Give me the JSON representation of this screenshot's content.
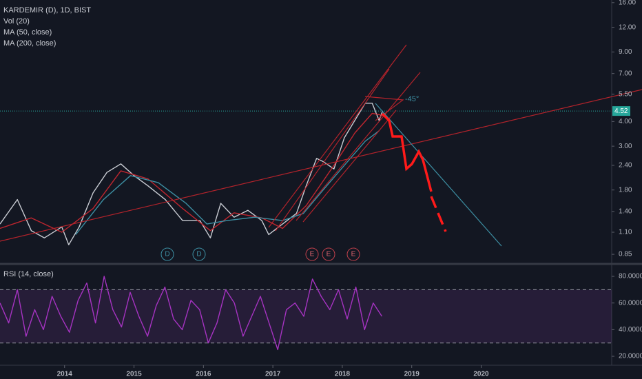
{
  "chart_data": [
    {
      "type": "line",
      "title": "KARDEMIR (D), 1D, BIST",
      "indicator_labels": [
        "Vol (20)"
      ],
      "log": true,
      "xlim": [
        2013.07,
        2021.88
      ],
      "ylim": [
        0.76,
        16.5
      ],
      "xticks": [
        2014,
        2015,
        2016,
        2017,
        2018,
        2019,
        2020
      ],
      "yticks": [
        {
          "value": 16,
          "label": "16.00"
        },
        {
          "value": 12,
          "label": "12.00"
        },
        {
          "value": 9,
          "label": "9.00"
        },
        {
          "value": 7,
          "label": "7.00"
        },
        {
          "value": 5.5,
          "label": "5.50"
        },
        {
          "value": 4,
          "label": "4.00"
        },
        {
          "value": 3,
          "label": "3.00"
        },
        {
          "value": 2.4,
          "label": "2.40"
        },
        {
          "value": 1.8,
          "label": "1.80"
        },
        {
          "value": 1.4,
          "label": "1.40"
        },
        {
          "value": 1.1,
          "label": "1.10"
        },
        {
          "value": 0.85,
          "label": "0.85"
        }
      ],
      "last_price": 4.52,
      "last_price_color": "#26a69a",
      "annotations": [
        "-45°"
      ],
      "events": [
        "D",
        "D",
        "E",
        "E",
        "E"
      ],
      "series": [
        {
          "color": "#c9ccd3",
          "x": [
            2013.07,
            2013.32,
            2013.52,
            2013.71,
            2013.96,
            2014.06,
            2014.21,
            2014.41,
            2014.61,
            2014.81,
            2015.0,
            2015.2,
            2015.45,
            2015.7,
            2015.95,
            2016.1,
            2016.25,
            2016.44,
            2016.64,
            2016.84,
            2016.94,
            2017.14,
            2017.34,
            2017.48,
            2017.63,
            2017.73,
            2017.88,
            2018.03,
            2018.18,
            2018.33,
            2018.43,
            2018.53,
            2018.58
          ],
          "values": [
            1.21,
            1.61,
            1.12,
            1.03,
            1.17,
            0.95,
            1.17,
            1.74,
            2.21,
            2.44,
            2.13,
            1.89,
            1.61,
            1.26,
            1.26,
            1.03,
            1.54,
            1.31,
            1.42,
            1.26,
            1.07,
            1.21,
            1.37,
            1.89,
            2.6,
            2.5,
            2.3,
            3.31,
            4.05,
            4.95,
            4.95,
            4.05,
            4.52
          ]
        },
        {
          "name": "MA (50, close)",
          "color": "#c0262f",
          "x": [
            2013.07,
            2013.52,
            2013.96,
            2014.41,
            2014.81,
            2015.2,
            2015.7,
            2016.1,
            2016.44,
            2016.84,
            2017.14,
            2017.48,
            2017.88,
            2018.18,
            2018.43,
            2018.58
          ],
          "values": [
            1.15,
            1.3,
            1.1,
            1.45,
            2.25,
            2.05,
            1.45,
            1.12,
            1.38,
            1.3,
            1.15,
            1.5,
            2.4,
            3.5,
            4.4,
            4.3
          ]
        },
        {
          "name": "MA (200, close)",
          "color": "#3d8fa3",
          "x": [
            2014.16,
            2014.56,
            2014.95,
            2015.35,
            2015.75,
            2016.05,
            2016.34,
            2016.74,
            2017.14,
            2017.44,
            2017.73,
            2018.03,
            2018.33,
            2018.53
          ],
          "values": [
            1.07,
            1.61,
            2.13,
            1.96,
            1.54,
            1.21,
            1.26,
            1.31,
            1.26,
            1.37,
            1.81,
            2.4,
            3.18,
            3.59
          ]
        }
      ]
    },
    {
      "type": "line",
      "xlim": [
        2013.07,
        2021.88
      ],
      "ylim": [
        13.3,
        88.3
      ],
      "yticks": [
        {
          "value": 80,
          "label": "80.0000"
        },
        {
          "value": 60,
          "label": "60.0000"
        },
        {
          "value": 40,
          "label": "40.0000"
        },
        {
          "value": 20,
          "label": "20.0000"
        }
      ],
      "bands": [
        30,
        70
      ],
      "series": [
        {
          "name": "RSI (14, close)",
          "color": "#a633c2",
          "x": [
            2013.07,
            2013.195,
            2013.32,
            2013.445,
            2013.57,
            2013.695,
            2013.82,
            2013.945,
            2014.07,
            2014.195,
            2014.32,
            2014.445,
            2014.57,
            2014.695,
            2014.82,
            2014.945,
            2015.07,
            2015.195,
            2015.32,
            2015.445,
            2015.57,
            2015.695,
            2015.82,
            2015.945,
            2016.07,
            2016.195,
            2016.32,
            2016.445,
            2016.57,
            2016.695,
            2016.82,
            2016.945,
            2017.07,
            2017.195,
            2017.32,
            2017.445,
            2017.57,
            2017.695,
            2017.82,
            2017.945,
            2018.07,
            2018.195,
            2018.32,
            2018.445,
            2018.57
          ],
          "values": [
            60,
            45,
            70,
            35,
            55,
            40,
            65,
            50,
            38,
            62,
            75,
            45,
            80,
            55,
            42,
            68,
            50,
            35,
            58,
            72,
            48,
            40,
            62,
            55,
            30,
            45,
            70,
            60,
            35,
            50,
            65,
            45,
            25,
            55,
            60,
            50,
            78,
            65,
            55,
            70,
            48,
            72,
            40,
            60,
            50
          ]
        }
      ]
    }
  ]
}
